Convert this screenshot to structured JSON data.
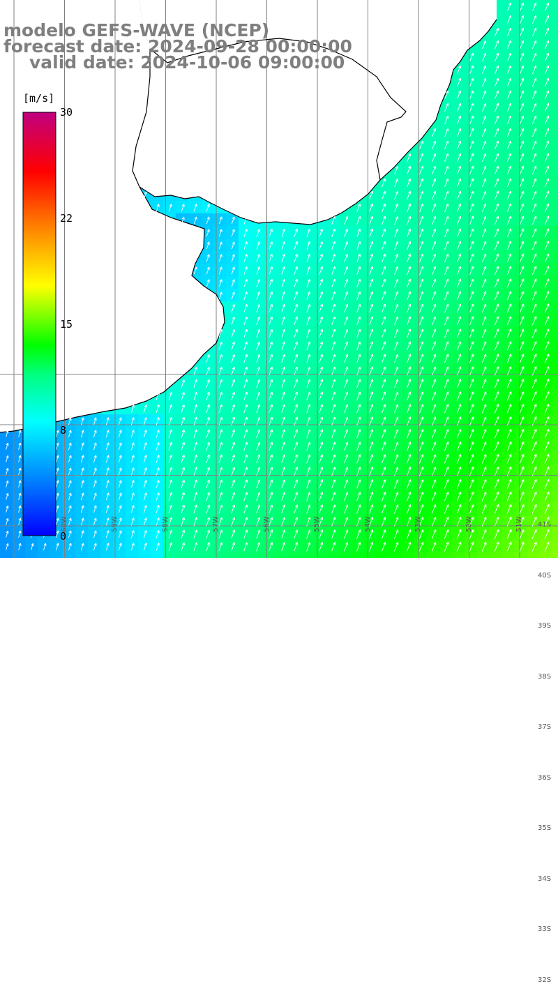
{
  "titles": {
    "line1": "modelo GEFS-WAVE (NCEP)",
    "line2": "forecast date: 2024-09-28 00:00:00",
    "line3": "valid date: 2024-10-06 09:00:00"
  },
  "colorbar": {
    "unit": "[m/s]",
    "ticks": [
      {
        "label": "30",
        "value": 30
      },
      {
        "label": "22",
        "value": 22
      },
      {
        "label": "15",
        "value": 15
      },
      {
        "label": "8",
        "value": 8
      },
      {
        "label": "0",
        "value": 0
      }
    ],
    "min": 0,
    "max": 30
  },
  "map": {
    "lat_labels": [
      {
        "label": "32S",
        "lat": -32
      },
      {
        "label": "33S",
        "lat": -33
      },
      {
        "label": "34S",
        "lat": -34
      },
      {
        "label": "35S",
        "lat": -35
      },
      {
        "label": "36S",
        "lat": -36
      },
      {
        "label": "37S",
        "lat": -37
      },
      {
        "label": "38S",
        "lat": -38
      },
      {
        "label": "39S",
        "lat": -39
      },
      {
        "label": "40S",
        "lat": -40
      },
      {
        "label": "41S",
        "lat": -41
      }
    ],
    "lon_labels": [
      {
        "label": "60W",
        "lon": -60
      },
      {
        "label": "59W",
        "lon": -59
      },
      {
        "label": "58W",
        "lon": -58
      },
      {
        "label": "57W",
        "lon": -57
      },
      {
        "label": "56W",
        "lon": -56
      },
      {
        "label": "55W",
        "lon": -55
      },
      {
        "label": "54W",
        "lon": -54
      },
      {
        "label": "53W",
        "lon": -53
      },
      {
        "label": "52W",
        "lon": -52
      },
      {
        "label": "51W",
        "lon": -51
      }
    ],
    "land_color": "#ffffff",
    "grid_color": "#808080",
    "coast_color": "#000000",
    "arrow_color": "#ffffff"
  }
}
